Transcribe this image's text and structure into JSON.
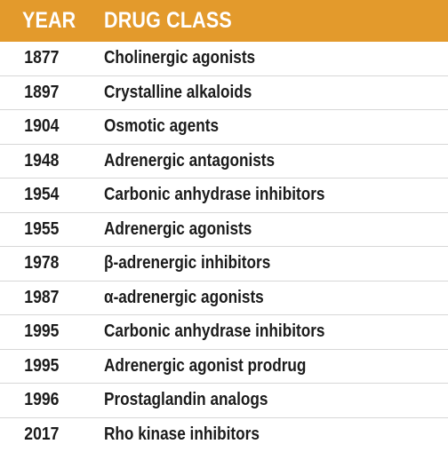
{
  "header": {
    "year": "YEAR",
    "drug_class": "DRUG CLASS"
  },
  "colors": {
    "header_background": "#e39a2c",
    "header_text": "#ffffff",
    "row_text": "#1b1b1b",
    "divider": "#d7d7d7"
  },
  "rows": [
    {
      "year": "1877",
      "drug_class": "Cholinergic agonists"
    },
    {
      "year": "1897",
      "drug_class": "Crystalline alkaloids"
    },
    {
      "year": "1904",
      "drug_class": "Osmotic agents"
    },
    {
      "year": "1948",
      "drug_class": "Adrenergic antagonists"
    },
    {
      "year": "1954",
      "drug_class": "Carbonic anhydrase inhibitors"
    },
    {
      "year": "1955",
      "drug_class": "Adrenergic agonists"
    },
    {
      "year": "1978",
      "drug_class": "β-adrenergic inhibitors"
    },
    {
      "year": "1987",
      "drug_class": "α-adrenergic agonists"
    },
    {
      "year": "1995",
      "drug_class": "Carbonic anhydrase inhibitors"
    },
    {
      "year": "1995",
      "drug_class": "Adrenergic agonist prodrug"
    },
    {
      "year": "1996",
      "drug_class": "Prostaglandin analogs"
    },
    {
      "year": "2017",
      "drug_class": "Rho kinase inhibitors"
    }
  ]
}
